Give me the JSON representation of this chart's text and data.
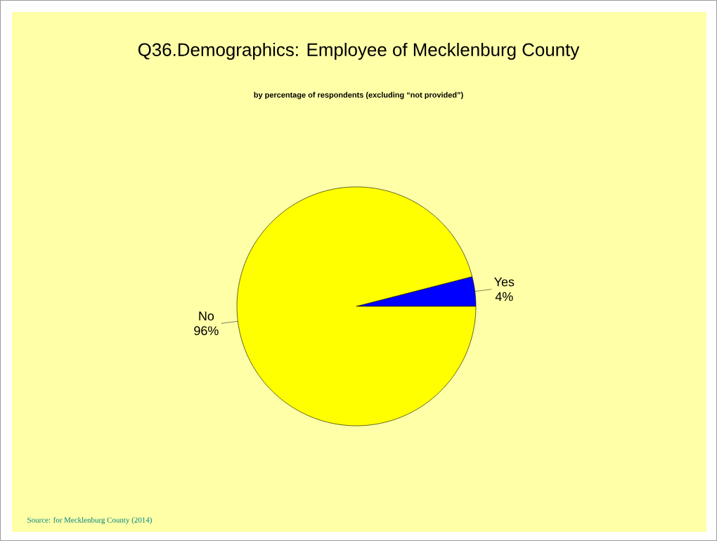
{
  "chart_data": {
    "type": "pie",
    "title": "Q36.Demographics: Employee of Mecklenburg County",
    "subtitle": "by percentage of respondents (excluding “not provided”)",
    "categories": [
      "Yes",
      "No"
    ],
    "values": [
      4,
      96
    ],
    "colors": [
      "#0000ff",
      "#ffff00"
    ],
    "value_labels": [
      "4%",
      "96%"
    ],
    "annotations": [
      "Source:  for Mecklenburg County (2014)"
    ]
  }
}
